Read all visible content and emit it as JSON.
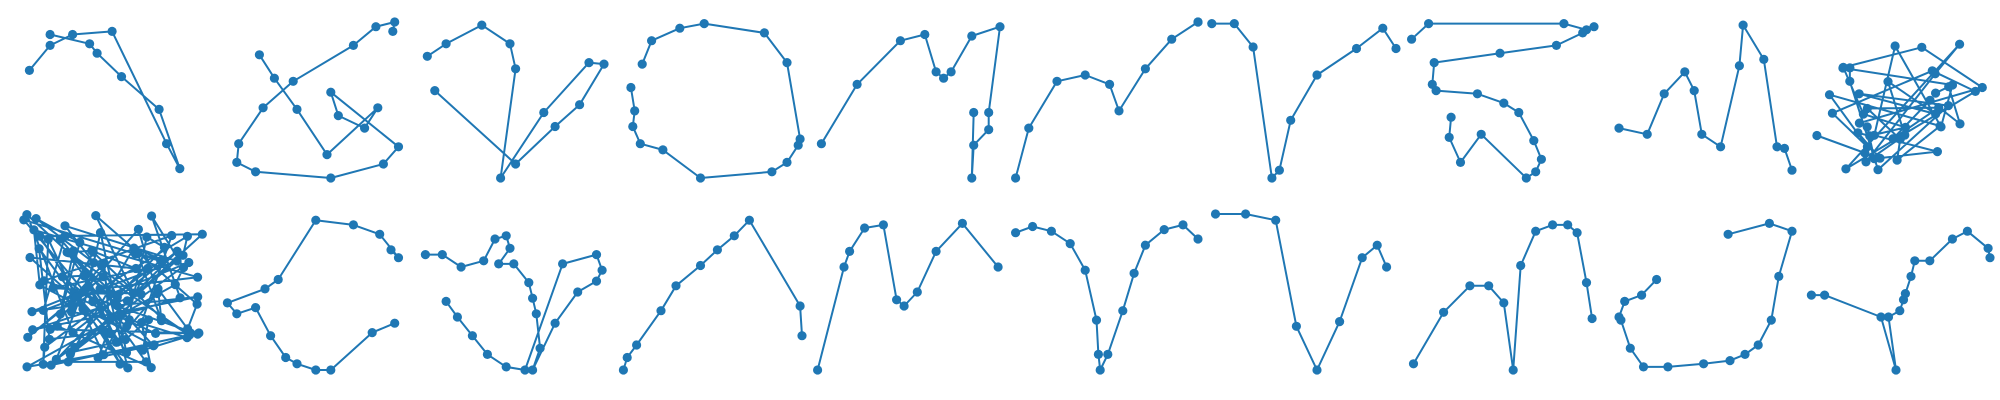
{
  "color": "#1f77b4",
  "chart_data": [
    {
      "type": "line",
      "row": 0,
      "col": 0,
      "x": [
        0.05,
        0.16,
        0.28,
        0.49,
        0.78,
        0.85,
        0.74,
        0.54,
        0.41,
        0.37,
        0.16
      ],
      "y": [
        0.69,
        0.85,
        0.92,
        0.94,
        0.22,
        0.06,
        0.44,
        0.65,
        0.8,
        0.86,
        0.92
      ]
    },
    {
      "type": "line",
      "row": 0,
      "col": 1,
      "x": [
        0.22,
        0.3,
        0.42,
        0.58,
        0.85,
        0.78,
        0.64,
        0.6,
        0.96,
        0.88,
        0.6,
        0.2,
        0.1,
        0.11,
        0.24,
        0.4,
        0.72,
        0.84,
        0.94,
        0.93
      ],
      "y": [
        0.79,
        0.64,
        0.44,
        0.15,
        0.45,
        0.32,
        0.4,
        0.55,
        0.2,
        0.09,
        0.0,
        0.04,
        0.1,
        0.22,
        0.45,
        0.62,
        0.85,
        0.97,
        1.0,
        0.94
      ],
      "order": "reverse"
    },
    {
      "type": "line",
      "row": 0,
      "col": 2,
      "x": [
        0.06,
        0.16,
        0.35,
        0.5,
        0.53,
        0.45,
        0.68,
        0.92,
        1.0,
        0.87,
        0.74,
        0.53,
        0.1
      ],
      "y": [
        0.78,
        0.86,
        0.98,
        0.86,
        0.7,
        0.0,
        0.42,
        0.74,
        0.73,
        0.47,
        0.33,
        0.09,
        0.56
      ],
      "order": "custom"
    },
    {
      "type": "line",
      "row": 0,
      "col": 3,
      "x": [
        0.15,
        0.2,
        0.35,
        0.48,
        0.8,
        0.92,
        0.99,
        0.98,
        0.92,
        0.84,
        0.46,
        0.26,
        0.14,
        0.1,
        0.11,
        0.09
      ],
      "y": [
        0.73,
        0.88,
        0.96,
        0.99,
        0.93,
        0.74,
        0.25,
        0.21,
        0.1,
        0.04,
        0.0,
        0.18,
        0.22,
        0.33,
        0.43,
        0.58
      ],
      "order": "custom"
    },
    {
      "type": "line",
      "row": 0,
      "col": 4,
      "x": [
        0.05,
        0.24,
        0.47,
        0.6,
        0.66,
        0.7,
        0.74,
        0.85,
        1.0,
        0.94,
        0.94,
        0.86,
        0.85,
        0.86
      ],
      "y": [
        0.22,
        0.6,
        0.88,
        0.92,
        0.68,
        0.64,
        0.68,
        0.91,
        0.97,
        0.42,
        0.31,
        0.21,
        0.0,
        0.42
      ],
      "order": "custom"
    },
    {
      "type": "line",
      "row": 0,
      "col": 5,
      "x": [
        0.03,
        0.1,
        0.25,
        0.4,
        0.53,
        0.58,
        0.72,
        0.86,
        1.0,
        1.0
      ],
      "y": [
        0.0,
        0.32,
        0.62,
        0.66,
        0.6,
        0.43,
        0.7,
        0.89,
        1.0,
        1.0
      ]
    },
    {
      "type": "line",
      "row": 0,
      "col": 6,
      "x": [
        0.02,
        0.14,
        0.24,
        0.34,
        0.38,
        0.44,
        0.58,
        0.79,
        0.93,
        1.0
      ],
      "y": [
        0.99,
        0.99,
        0.84,
        0.0,
        0.05,
        0.37,
        0.66,
        0.83,
        0.96,
        0.83
      ]
    },
    {
      "type": "line",
      "row": 0,
      "col": 7,
      "x": [
        0.03,
        0.12,
        0.84,
        0.96,
        1.0,
        0.94,
        0.8,
        0.5,
        0.15,
        0.14,
        0.16,
        0.38,
        0.52,
        0.6,
        0.68,
        0.72,
        0.69,
        0.64,
        0.4,
        0.29,
        0.23,
        0.24
      ],
      "y": [
        0.89,
        0.99,
        0.99,
        0.95,
        0.97,
        0.93,
        0.85,
        0.8,
        0.74,
        0.6,
        0.56,
        0.54,
        0.48,
        0.42,
        0.24,
        0.12,
        0.04,
        0.0,
        0.28,
        0.1,
        0.26,
        0.39
      ],
      "order": "custom"
    },
    {
      "type": "line",
      "row": 0,
      "col": 8,
      "x": [
        0.08,
        0.23,
        0.32,
        0.43,
        0.48,
        0.52,
        0.62,
        0.72,
        0.74,
        0.85,
        0.92,
        0.96,
        1.0
      ],
      "y": [
        0.32,
        0.28,
        0.54,
        0.68,
        0.56,
        0.28,
        0.2,
        0.72,
        0.98,
        0.76,
        0.2,
        0.19,
        0.05
      ],
      "order": "custom"
    },
    {
      "type": "scribble",
      "row": 0,
      "col": 9
    },
    {
      "type": "scribble",
      "row": 1,
      "col": 0
    },
    {
      "type": "line",
      "row": 1,
      "col": 1,
      "x": [
        0.92,
        0.96,
        0.86,
        0.72,
        0.52,
        0.32,
        0.25,
        0.05,
        0.1,
        0.2,
        0.28,
        0.36,
        0.42,
        0.52,
        0.6,
        0.82,
        0.94
      ],
      "y": [
        0.77,
        0.72,
        0.87,
        0.93,
        0.96,
        0.58,
        0.52,
        0.43,
        0.36,
        0.4,
        0.22,
        0.08,
        0.04,
        0.0,
        0.0,
        0.24,
        0.3
      ]
    },
    {
      "type": "line",
      "row": 1,
      "col": 2,
      "x": [
        0.05,
        0.14,
        0.24,
        0.36,
        0.42,
        0.48,
        0.5,
        0.44,
        0.52,
        0.6,
        0.62,
        0.64,
        0.66,
        0.62,
        0.74,
        0.86,
        0.96,
        0.99,
        0.96,
        0.78,
        0.58,
        0.48,
        0.38,
        0.3,
        0.22,
        0.16
      ],
      "y": [
        0.74,
        0.74,
        0.66,
        0.7,
        0.84,
        0.86,
        0.78,
        0.68,
        0.68,
        0.56,
        0.46,
        0.36,
        0.14,
        0.0,
        0.3,
        0.5,
        0.57,
        0.64,
        0.74,
        0.68,
        0.0,
        0.02,
        0.1,
        0.22,
        0.34,
        0.44
      ],
      "order": "custom"
    },
    {
      "type": "line",
      "row": 1,
      "col": 3,
      "x": [
        0.05,
        0.07,
        0.12,
        0.25,
        0.33,
        0.46,
        0.55,
        0.64,
        0.72,
        0.99,
        1.0
      ],
      "y": [
        0.0,
        0.08,
        0.16,
        0.38,
        0.54,
        0.67,
        0.77,
        0.86,
        0.96,
        0.41,
        0.22
      ],
      "order": "reverse"
    },
    {
      "type": "line",
      "row": 1,
      "col": 4,
      "x": [
        0.03,
        0.17,
        0.2,
        0.28,
        0.38,
        0.45,
        0.49,
        0.56,
        0.66,
        0.8,
        0.99
      ],
      "y": [
        0.0,
        0.66,
        0.76,
        0.91,
        0.93,
        0.45,
        0.41,
        0.5,
        0.76,
        0.94,
        0.66
      ]
    },
    {
      "type": "line",
      "row": 1,
      "col": 5,
      "x": [
        0.03,
        0.12,
        0.22,
        0.32,
        0.4,
        0.46,
        0.47,
        0.48,
        0.52,
        0.6,
        0.66,
        0.72,
        0.82,
        0.92,
        1.0
      ],
      "y": [
        0.88,
        0.92,
        0.89,
        0.81,
        0.64,
        0.32,
        0.1,
        0.0,
        0.1,
        0.38,
        0.62,
        0.8,
        0.9,
        0.93,
        0.84
      ]
    },
    {
      "type": "line",
      "row": 1,
      "col": 6,
      "x": [
        0.04,
        0.2,
        0.36,
        0.47,
        0.58,
        0.7,
        0.82,
        0.9,
        0.95
      ],
      "y": [
        1.0,
        1.0,
        0.96,
        0.28,
        0.0,
        0.31,
        0.72,
        0.8,
        0.66
      ]
    },
    {
      "type": "line",
      "row": 1,
      "col": 7,
      "x": [
        0.04,
        0.2,
        0.34,
        0.44,
        0.52,
        0.57,
        0.61,
        0.69,
        0.78,
        0.86,
        0.91,
        0.96,
        0.99
      ],
      "y": [
        0.04,
        0.37,
        0.54,
        0.54,
        0.43,
        0.0,
        0.67,
        0.89,
        0.93,
        0.93,
        0.88,
        0.56,
        0.33
      ],
      "order": "custom"
    },
    {
      "type": "line",
      "row": 1,
      "col": 8,
      "x": [
        0.28,
        0.2,
        0.11,
        0.08,
        0.09,
        0.14,
        0.21,
        0.34,
        0.53,
        0.67,
        0.75,
        0.82,
        0.89,
        0.93,
        1.0,
        0.88,
        0.66
      ],
      "y": [
        0.58,
        0.48,
        0.44,
        0.34,
        0.32,
        0.14,
        0.02,
        0.02,
        0.04,
        0.06,
        0.1,
        0.16,
        0.32,
        0.6,
        0.89,
        0.94,
        0.87
      ],
      "order": "custom"
    },
    {
      "type": "line",
      "row": 1,
      "col": 9,
      "x": [
        0.05,
        0.12,
        0.42,
        0.5,
        0.46,
        0.52,
        0.54,
        0.55,
        0.58,
        0.6,
        0.68,
        0.8,
        0.88,
        0.99,
        1.0
      ],
      "y": [
        0.48,
        0.48,
        0.34,
        0.0,
        0.34,
        0.38,
        0.45,
        0.49,
        0.6,
        0.7,
        0.7,
        0.84,
        0.89,
        0.78,
        0.72
      ],
      "order": "custom"
    }
  ]
}
